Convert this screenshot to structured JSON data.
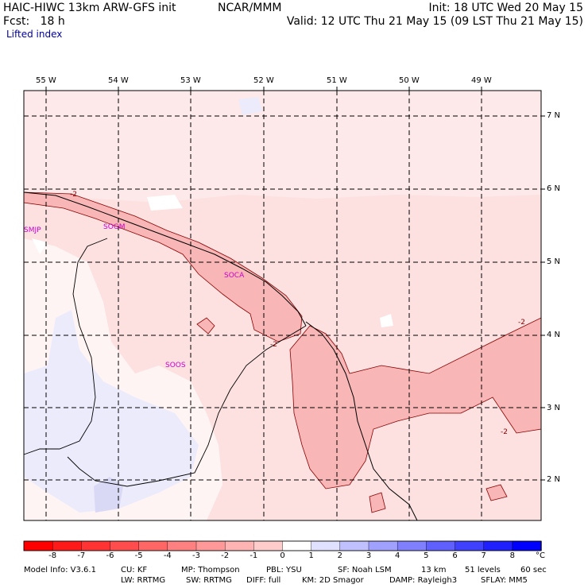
{
  "header": {
    "model": "HAIC-HIWC 13km ARW-GFS init",
    "org": "NCAR/MMM",
    "init": "Init: 18 UTC Wed 20 May 15",
    "fcst": "Fcst:   18 h",
    "valid": "Valid: 12 UTC Thu 21 May 15 (09 LST Thu 21 May 15)",
    "field": "Lifted index"
  },
  "map": {
    "lon_labels": [
      "55 W",
      "54 W",
      "53 W",
      "52 W",
      "51 W",
      "50 W",
      "49 W"
    ],
    "lat_labels": [
      "7 N",
      "6 N",
      "5 N",
      "4 N",
      "3 N",
      "2 N"
    ],
    "stations": [
      "SMJP",
      "SOGM",
      "SOCA",
      "SOOS"
    ],
    "contour_labels": [
      "-2",
      "-2",
      "-2",
      "-2"
    ]
  },
  "colorbar": {
    "unit": "°C",
    "ticks": [
      "-8",
      "-7",
      "-6",
      "-5",
      "-4",
      "-3",
      "-2",
      "-1",
      "0",
      "1",
      "2",
      "3",
      "4",
      "5",
      "6",
      "7",
      "8"
    ],
    "colors": [
      "#ff0000",
      "#ff1a1a",
      "#ff3333",
      "#ff4d4d",
      "#ff6666",
      "#ff8080",
      "#ff9999",
      "#ffb3b3",
      "#ffcccc",
      "#ffffff",
      "#e0e0ff",
      "#c0c0ff",
      "#a0a0ff",
      "#8080ff",
      "#6060ff",
      "#4040ff",
      "#2020ff",
      "#0000ff"
    ]
  },
  "footer": {
    "line1": [
      "Model Info: V3.6.1",
      "CU: KF",
      "MP: Thompson",
      "PBL: YSU",
      "SF: Noah LSM",
      "13 km",
      "51 levels",
      "60 sec"
    ],
    "line2": [
      "LW: RRTMG",
      "SW: RRTMG",
      "DIFF: full",
      "KM: 2D Smagor",
      "DAMP: Rayleigh3",
      "SFLAY: MM5"
    ]
  }
}
